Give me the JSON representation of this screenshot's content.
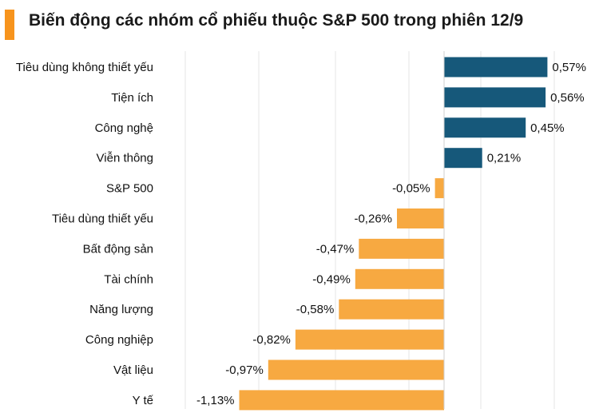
{
  "title": "Biến động các nhóm cổ phiếu thuộc S&P 500 trong phiên 12/9",
  "colors": {
    "positive": "#16587a",
    "negative": "#f7a941",
    "title_accent": "#f7941d",
    "grid": "#e6e6e6"
  },
  "chart_data": {
    "type": "bar",
    "orientation": "horizontal",
    "title": "Biến động các nhóm cổ phiếu thuộc S&P 500 trong phiên 12/9",
    "categories": [
      "Tiêu dùng không thiết yếu",
      "Tiện ích",
      "Công nghệ",
      "Viễn thông",
      "S&P 500",
      "Tiêu dùng thiết yếu",
      "Bất động sản",
      "Tài chính",
      "Năng lượng",
      "Công nghiệp",
      "Vật liệu",
      "Y tế"
    ],
    "values": [
      0.57,
      0.56,
      0.45,
      0.21,
      -0.05,
      -0.26,
      -0.47,
      -0.49,
      -0.58,
      -0.82,
      -0.97,
      -1.13
    ],
    "value_labels": [
      "0,57%",
      "0,56%",
      "0,45%",
      "0,21%",
      "-0,05%",
      "-0,26%",
      "-0,47%",
      "-0,49%",
      "-0,58%",
      "-0,82%",
      "-0,97%",
      "-1,13%"
    ],
    "xlim": [
      -1.13,
      0.57
    ],
    "grid": true,
    "xlabel": "",
    "ylabel": ""
  }
}
